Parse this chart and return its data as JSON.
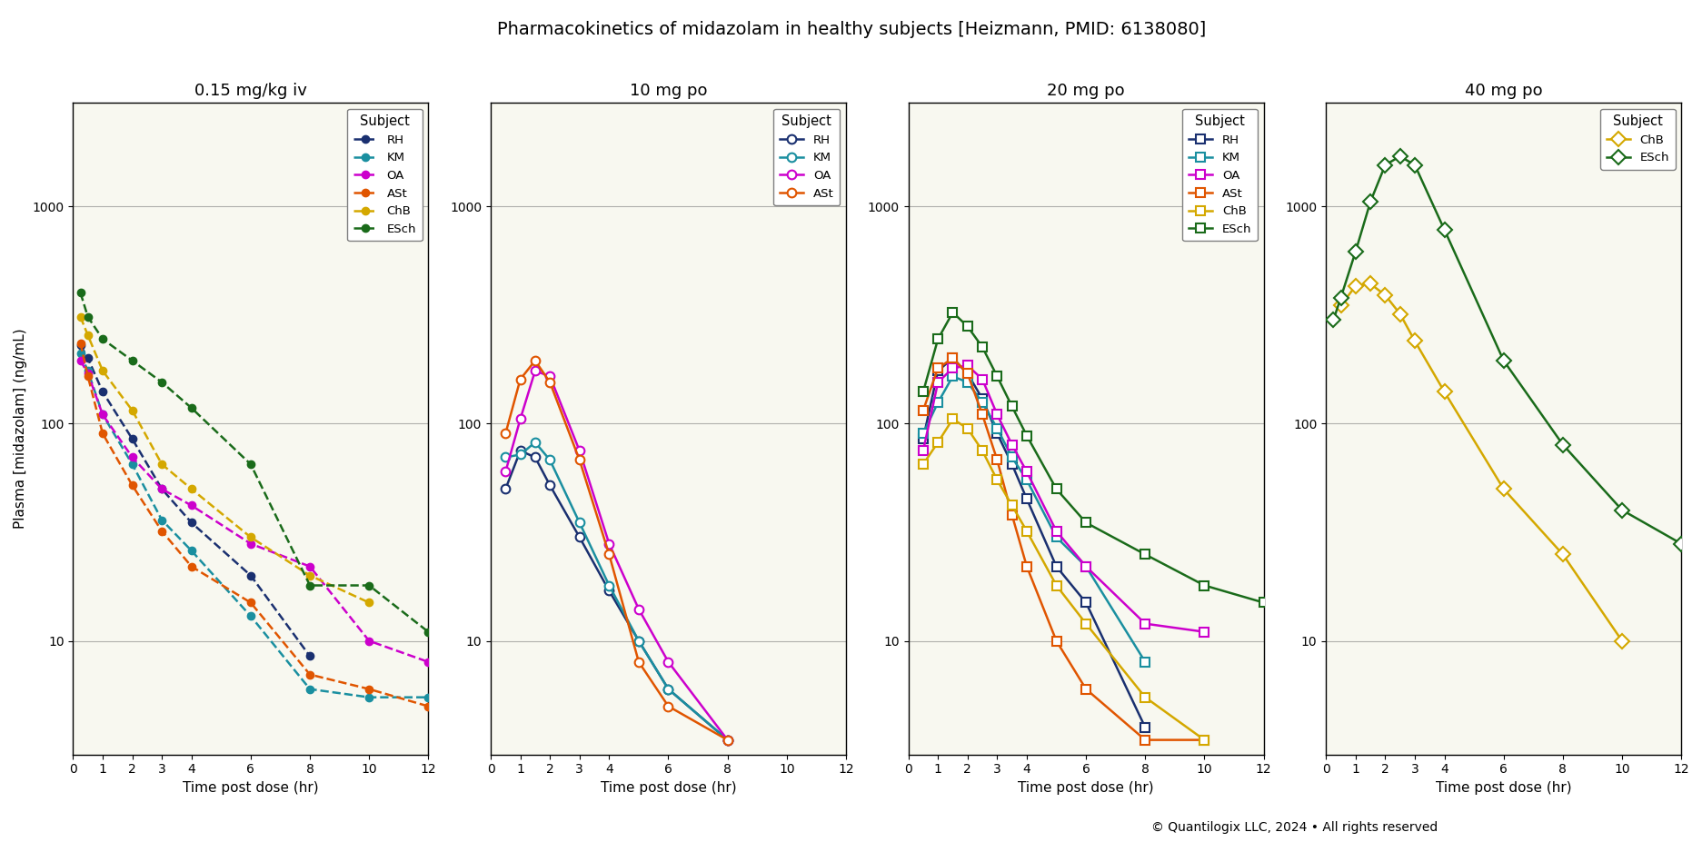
{
  "title": "Pharmacokinetics of midazolam in healthy subjects [Heizmann, PMID: 6138080]",
  "ylabel": "Plasma [midazolam] (ng/mL)",
  "xlabel": "Time post dose (hr)",
  "copyright": "© Quantilogix LLC, 2024 • All rights reserved",
  "subject_colors": {
    "RH": "#1a3070",
    "KM": "#1a8fa0",
    "OA": "#cc00cc",
    "ASt": "#e05500",
    "ChB": "#d4a800",
    "ESch": "#1a6b1a"
  },
  "panels": [
    {
      "title": "0.15 mg/kg iv",
      "panel_type": "iv",
      "subjects": [
        "RH",
        "KM",
        "OA",
        "ASt",
        "ChB",
        "ESch"
      ],
      "data": {
        "RH": {
          "t": [
            0.25,
            0.5,
            1,
            2,
            3,
            4,
            6,
            8
          ],
          "c": [
            230,
            200,
            140,
            85,
            50,
            35,
            20,
            8.5
          ]
        },
        "KM": {
          "t": [
            0.25,
            0.5,
            1,
            2,
            3,
            4,
            6,
            8,
            10,
            12
          ],
          "c": [
            210,
            175,
            110,
            65,
            36,
            26,
            13,
            6,
            5.5,
            5.5
          ]
        },
        "OA": {
          "t": [
            0.25,
            0.5,
            1,
            2,
            3,
            4,
            6,
            8,
            10,
            12
          ],
          "c": [
            195,
            170,
            110,
            70,
            50,
            42,
            28,
            22,
            10,
            8
          ]
        },
        "ASt": {
          "t": [
            0.25,
            0.5,
            1,
            2,
            3,
            4,
            6,
            8,
            10,
            12
          ],
          "c": [
            235,
            165,
            90,
            52,
            32,
            22,
            15,
            7,
            6,
            5
          ]
        },
        "ChB": {
          "t": [
            0.25,
            0.5,
            1,
            2,
            3,
            4,
            6,
            8,
            10
          ],
          "c": [
            310,
            255,
            175,
            115,
            65,
            50,
            30,
            20,
            15
          ]
        },
        "ESch": {
          "t": [
            0.25,
            0.5,
            1,
            2,
            3,
            4,
            6,
            8,
            10,
            12
          ],
          "c": [
            400,
            310,
            245,
            195,
            155,
            118,
            65,
            18,
            18,
            11
          ]
        }
      },
      "xlim": [
        0,
        12
      ],
      "xticks": [
        0,
        1,
        2,
        3,
        4,
        6,
        8,
        10,
        12
      ]
    },
    {
      "title": "10 mg po",
      "panel_type": "po_circle",
      "subjects": [
        "RH",
        "KM",
        "OA",
        "ASt"
      ],
      "data": {
        "RH": {
          "t": [
            0.5,
            1,
            1.5,
            2,
            3,
            4,
            5,
            6,
            8
          ],
          "c": [
            50,
            75,
            70,
            52,
            30,
            17,
            10,
            6,
            3.5
          ]
        },
        "KM": {
          "t": [
            0.5,
            1,
            1.5,
            2,
            3,
            4,
            5,
            6,
            8
          ],
          "c": [
            70,
            72,
            82,
            68,
            35,
            18,
            10,
            6,
            3.5
          ]
        },
        "OA": {
          "t": [
            0.5,
            1,
            1.5,
            2,
            3,
            4,
            5,
            6,
            8
          ],
          "c": [
            60,
            105,
            175,
            165,
            75,
            28,
            14,
            8,
            3.5
          ]
        },
        "ASt": {
          "t": [
            0.5,
            1,
            1.5,
            2,
            3,
            4,
            5,
            6,
            8
          ],
          "c": [
            90,
            160,
            195,
            155,
            68,
            25,
            8,
            5,
            3.5
          ]
        }
      },
      "xlim": [
        0,
        12
      ],
      "xticks": [
        0,
        1,
        2,
        3,
        4,
        6,
        8,
        10,
        12
      ]
    },
    {
      "title": "20 mg po",
      "panel_type": "po_square",
      "subjects": [
        "RH",
        "KM",
        "OA",
        "ASt",
        "ChB",
        "ESch"
      ],
      "data": {
        "RH": {
          "t": [
            0.5,
            1,
            1.5,
            2,
            2.5,
            3,
            3.5,
            4,
            5,
            6,
            8
          ],
          "c": [
            85,
            175,
            200,
            170,
            130,
            90,
            65,
            45,
            22,
            15,
            4
          ]
        },
        "KM": {
          "t": [
            0.5,
            1,
            1.5,
            2,
            2.5,
            3,
            3.5,
            4,
            5,
            6,
            8
          ],
          "c": [
            90,
            125,
            165,
            155,
            125,
            95,
            70,
            55,
            30,
            22,
            8
          ]
        },
        "OA": {
          "t": [
            0.5,
            1,
            1.5,
            2,
            2.5,
            3,
            3.5,
            4,
            5,
            6,
            8,
            10
          ],
          "c": [
            75,
            155,
            180,
            185,
            160,
            110,
            80,
            60,
            32,
            22,
            12,
            11
          ]
        },
        "ASt": {
          "t": [
            0.5,
            1,
            1.5,
            2,
            2.5,
            3,
            3.5,
            4,
            5,
            6,
            8,
            10
          ],
          "c": [
            115,
            180,
            200,
            170,
            110,
            68,
            38,
            22,
            10,
            6,
            3.5,
            3.5
          ]
        },
        "ChB": {
          "t": [
            0.5,
            1,
            1.5,
            2,
            2.5,
            3,
            3.5,
            4,
            5,
            6,
            8,
            10
          ],
          "c": [
            65,
            82,
            105,
            95,
            75,
            55,
            42,
            32,
            18,
            12,
            5.5,
            3.5
          ]
        },
        "ESch": {
          "t": [
            0.5,
            1,
            1.5,
            2,
            2.5,
            3,
            3.5,
            4,
            5,
            6,
            8,
            10,
            12
          ],
          "c": [
            140,
            245,
            325,
            280,
            225,
            165,
            120,
            88,
            50,
            35,
            25,
            18,
            15
          ]
        }
      },
      "xlim": [
        0,
        12
      ],
      "xticks": [
        0,
        1,
        2,
        3,
        4,
        6,
        8,
        10,
        12
      ]
    },
    {
      "title": "40 mg po",
      "panel_type": "po_diamond",
      "subjects": [
        "ChB",
        "ESch"
      ],
      "data": {
        "ChB": {
          "t": [
            0.5,
            1,
            1.5,
            2,
            2.5,
            3,
            4,
            6,
            8,
            10
          ],
          "c": [
            350,
            430,
            440,
            390,
            320,
            240,
            140,
            50,
            25,
            10
          ]
        },
        "ESch": {
          "t": [
            0.25,
            0.5,
            1,
            1.5,
            2,
            2.5,
            3,
            4,
            6,
            8,
            10,
            12
          ],
          "c": [
            300,
            380,
            620,
            1050,
            1550,
            1700,
            1550,
            780,
            195,
            80,
            40,
            28
          ]
        }
      },
      "xlim": [
        0,
        12
      ],
      "xticks": [
        0,
        1,
        2,
        3,
        4,
        6,
        8,
        10,
        12
      ]
    }
  ],
  "ylim": [
    3,
    3000
  ],
  "bg_color": "#f8f8f0"
}
